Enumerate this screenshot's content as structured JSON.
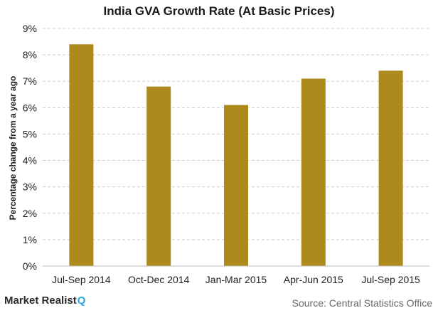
{
  "chart_data": {
    "type": "bar",
    "title": "India GVA Growth Rate (At Basic Prices)",
    "xlabel": "",
    "ylabel": "Percentage change from a year ago",
    "categories": [
      "Jul-Sep 2014",
      "Oct-Dec 2014",
      "Jan-Mar 2015",
      "Apr-Jun 2015",
      "Jul-Sep 2015"
    ],
    "values": [
      8.4,
      6.8,
      6.1,
      7.1,
      7.4
    ],
    "ylim": [
      0,
      9
    ],
    "yticks": [
      "0%",
      "1%",
      "2%",
      "3%",
      "4%",
      "5%",
      "6%",
      "7%",
      "8%",
      "9%"
    ],
    "grid": "horizontal dashed",
    "bar_color": "#ad8a1b"
  },
  "footer": {
    "logo_text": "Market Realist",
    "logo_mark": "Q",
    "source": "Source: Central Statistics Office"
  }
}
